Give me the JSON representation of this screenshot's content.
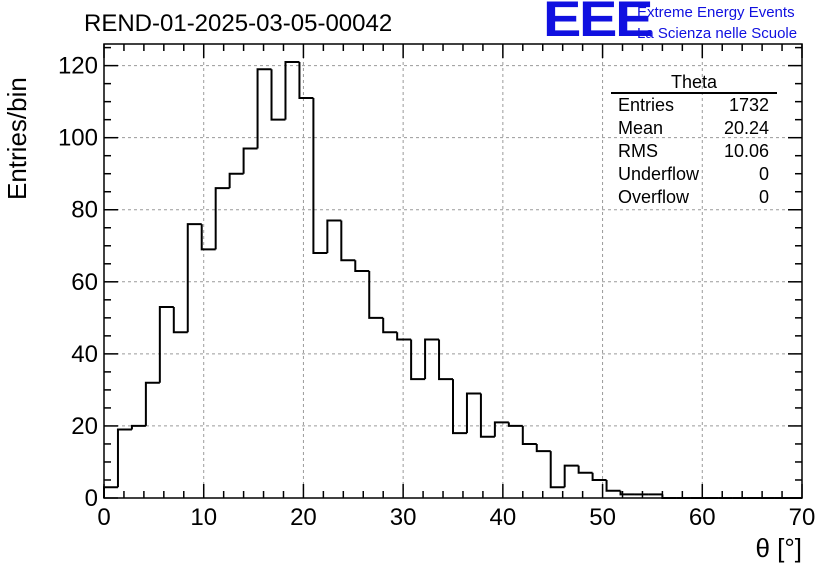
{
  "title": "REND-01-2025-03-05-00042",
  "logo": {
    "mark": "EEE",
    "line1": "Extreme Energy Events",
    "line2": "La Scienza nelle Scuole",
    "color": "#1010e0"
  },
  "stats_box": {
    "name": "Theta",
    "rows": [
      {
        "label": "Entries",
        "value": "1732"
      },
      {
        "label": "Mean",
        "value": "20.24"
      },
      {
        "label": "RMS",
        "value": "10.06"
      },
      {
        "label": "Underflow",
        "value": "0"
      },
      {
        "label": "Overflow",
        "value": "0"
      }
    ]
  },
  "chart_data": {
    "type": "bar",
    "style": "step-histogram",
    "xlabel": "θ [°]",
    "ylabel": "Entries/bin",
    "xlim": [
      0,
      70
    ],
    "ylim": [
      0,
      126
    ],
    "x_ticks": [
      0,
      10,
      20,
      30,
      40,
      50,
      60,
      70
    ],
    "y_ticks": [
      0,
      20,
      40,
      60,
      80,
      100,
      120
    ],
    "grid": true,
    "line_color": "#000000",
    "bin_width": 1.4,
    "bin_edges_start": 0,
    "values": [
      3,
      19,
      20,
      32,
      53,
      46,
      76,
      69,
      86,
      90,
      97,
      119,
      105,
      121,
      111,
      68,
      77,
      66,
      63,
      50,
      46,
      44,
      33,
      44,
      33,
      18,
      29,
      17,
      21,
      20,
      15,
      13,
      3,
      9,
      7,
      5,
      2,
      1,
      1,
      1,
      0,
      0,
      0,
      0,
      0,
      0,
      0,
      0,
      0,
      0
    ]
  }
}
